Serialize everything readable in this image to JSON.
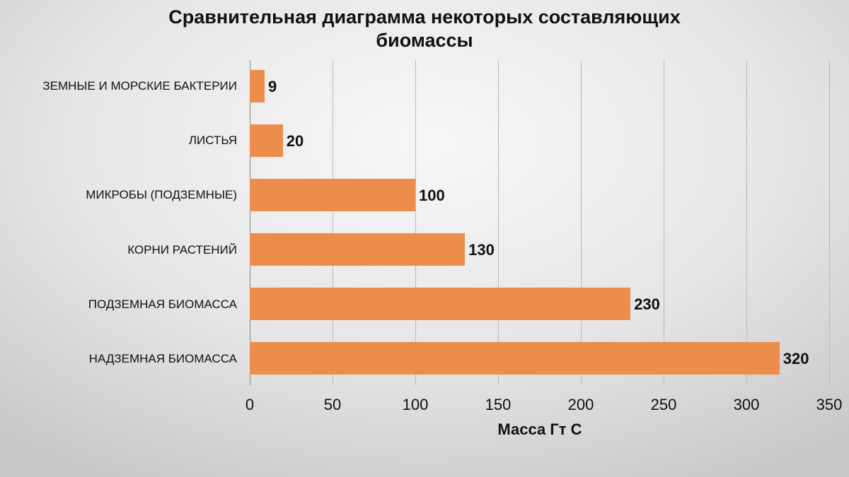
{
  "chart_data": {
    "type": "bar",
    "orientation": "horizontal",
    "title": "Сравнительная диаграмма некоторых составляющих биомассы",
    "title_lines": [
      "Сравнительная диаграмма некоторых составляющих",
      "биомассы"
    ],
    "xlabel": "Масса Гт С",
    "ylabel": "",
    "categories": [
      "ЗЕМНЫЕ И МОРСКИЕ БАКТЕРИИ",
      "ЛИСТЬЯ",
      "МИКРОБЫ (ПОДЗЕМНЫЕ)",
      "КОРНИ РАСТЕНИЙ",
      "ПОДЗЕМНАЯ БИОМАССА",
      "НАДЗЕМНАЯ БИОМАССА"
    ],
    "values": [
      9,
      20,
      100,
      130,
      230,
      320
    ],
    "data_labels": [
      "9",
      "20",
      "100",
      "130",
      "230",
      "320"
    ],
    "xlim": [
      0,
      350
    ],
    "xticks": [
      "0",
      "50",
      "100",
      "150",
      "200",
      "250",
      "300",
      "350"
    ],
    "grid": {
      "vertical": true,
      "horizontal": false
    },
    "legend": null,
    "bar_color": "#ed8d4c"
  }
}
